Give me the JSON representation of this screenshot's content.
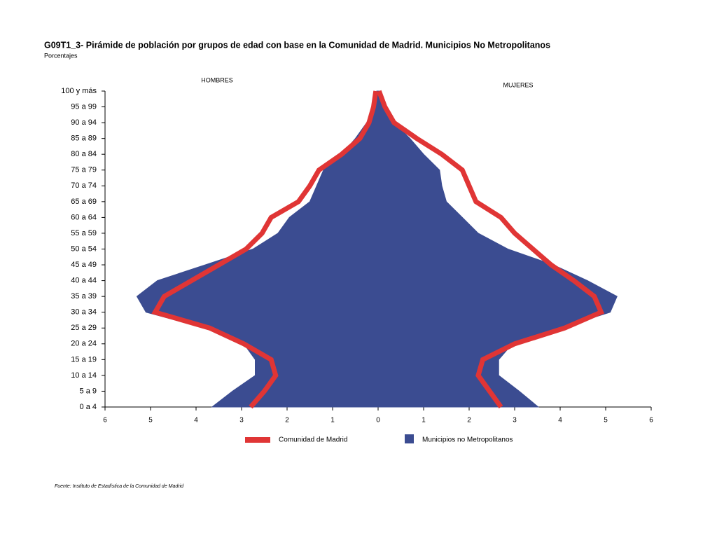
{
  "chart_data": {
    "type": "pyramid",
    "title": "G09T1_3- Pirámide de población por grupos de edad con base en la Comunidad de Madrid.  Municipios No Metropolitanos",
    "subtitle": "Porcentajes",
    "left_label": "HOMBRES",
    "right_label": "MUJERES",
    "source": "Fuente: Instituto de Estadística de la Comunidad de Madrid",
    "categories": [
      "0 a 4",
      "5 a 9",
      "10 a 14",
      "15 a 19",
      "20 a 24",
      "25 a 29",
      "30 a 34",
      "35 a 39",
      "40 a 44",
      "45 a 49",
      "50 a 54",
      "55 a 59",
      "60 a 64",
      "65 a 69",
      "70 a 74",
      "75 a 79",
      "80 a 84",
      "85 a 89",
      "90 a 94",
      "95 a 99",
      "100 y más"
    ],
    "series": [
      {
        "name": "Municipios no Metropolitanos",
        "color": "#3b4c91",
        "style": "area",
        "left": [
          -3.65,
          -3.2,
          -2.7,
          -2.7,
          -2.95,
          -3.8,
          -5.1,
          -5.3,
          -4.85,
          -3.8,
          -2.75,
          -2.2,
          -1.95,
          -1.5,
          -1.35,
          -1.2,
          -0.8,
          -0.5,
          -0.25,
          -0.1,
          -0.03
        ],
        "right": [
          3.52,
          3.1,
          2.65,
          2.65,
          2.95,
          4.0,
          5.1,
          5.25,
          4.6,
          3.85,
          2.85,
          2.2,
          1.85,
          1.5,
          1.4,
          1.35,
          1.0,
          0.7,
          0.35,
          0.15,
          0.05
        ]
      },
      {
        "name": "Comunidad de Madrid",
        "color": "#e03535",
        "style": "line",
        "left": [
          -2.8,
          -2.5,
          -2.25,
          -2.35,
          -2.95,
          -3.7,
          -4.9,
          -4.7,
          -4.1,
          -3.5,
          -2.9,
          -2.55,
          -2.35,
          -1.75,
          -1.5,
          -1.3,
          -0.8,
          -0.4,
          -0.2,
          -0.1,
          -0.05
        ],
        "right": [
          2.7,
          2.45,
          2.2,
          2.3,
          3.0,
          4.1,
          4.9,
          4.75,
          4.3,
          3.8,
          3.4,
          3.0,
          2.7,
          2.15,
          2.0,
          1.85,
          1.4,
          0.85,
          0.35,
          0.15,
          0.02
        ]
      }
    ],
    "legend_order": [
      1,
      0
    ],
    "xlim": [
      -6,
      6
    ],
    "xticks": [
      {
        "value": -6,
        "label": "6"
      },
      {
        "value": -5,
        "label": "5"
      },
      {
        "value": -4,
        "label": "4"
      },
      {
        "value": -3,
        "label": "3"
      },
      {
        "value": -2,
        "label": "2"
      },
      {
        "value": -1,
        "label": "1"
      },
      0,
      1,
      2,
      3,
      4,
      5,
      6
    ]
  }
}
